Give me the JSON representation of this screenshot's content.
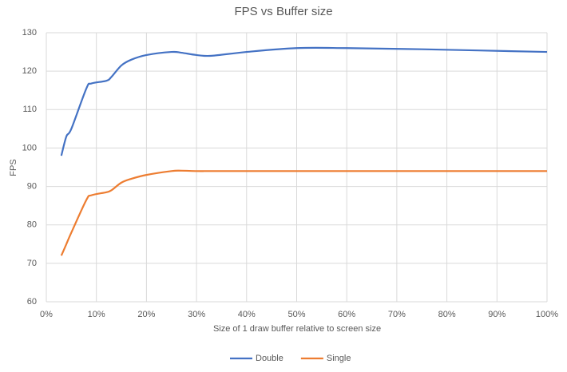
{
  "chart_data": {
    "type": "line",
    "title": "FPS vs Buffer size",
    "x_label": "Size of 1 draw buffer relative to screen size",
    "y_label": "FPS",
    "x": [
      3,
      4,
      5,
      8,
      9,
      12,
      13,
      15,
      17,
      20,
      25,
      27,
      30,
      33,
      40,
      50,
      60,
      75,
      100
    ],
    "series": [
      {
        "name": "Double",
        "color": "#4472c4",
        "values": [
          98,
          103,
          105,
          115.5,
          116.8,
          117.5,
          118.5,
          121.5,
          123,
          124.2,
          125,
          124.8,
          124.2,
          124,
          125,
          126,
          126,
          125.7,
          125
        ]
      },
      {
        "name": "Single",
        "color": "#ed7d31",
        "values": [
          72,
          75,
          78,
          86.5,
          87.7,
          88.5,
          89,
          91,
          92,
          93,
          94,
          94.1,
          94,
          94,
          94,
          94,
          94,
          94,
          94
        ]
      }
    ],
    "xlim": [
      0,
      100
    ],
    "xticks": [
      {
        "value": 0,
        "label": "0%"
      },
      {
        "value": 10,
        "label": "10%"
      },
      {
        "value": 20,
        "label": "20%"
      },
      {
        "value": 30,
        "label": "30%"
      },
      {
        "value": 40,
        "label": "40%"
      },
      {
        "value": 50,
        "label": "50%"
      },
      {
        "value": 60,
        "label": "60%"
      },
      {
        "value": 70,
        "label": "70%"
      },
      {
        "value": 80,
        "label": "80%"
      },
      {
        "value": 90,
        "label": "90%"
      },
      {
        "value": 100,
        "label": "100%"
      }
    ],
    "ylim": [
      60,
      130
    ],
    "yticks": [
      60,
      70,
      80,
      90,
      100,
      110,
      120,
      130
    ],
    "grid": true,
    "legend": "bottom"
  }
}
